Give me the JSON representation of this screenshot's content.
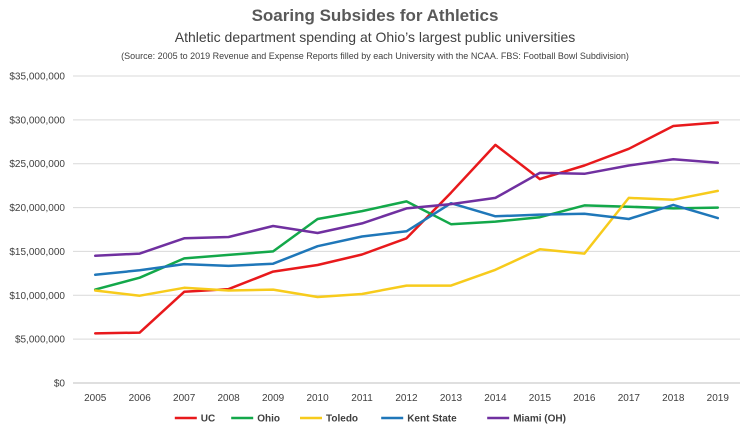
{
  "chart_data": {
    "type": "line",
    "title": "Soaring Subsides for Athletics",
    "subtitle": "Athletic department spending at Ohio’s largest public universities",
    "source": "(Source: 2005 to 2019 Revenue and Expense Reports filled by each University with the NCAA. FBS: Football Bowl Subdivision)",
    "x": [
      "2005",
      "2006",
      "2007",
      "2008",
      "2009",
      "2010",
      "2011",
      "2012",
      "2013",
      "2014",
      "2015",
      "2016",
      "2017",
      "2018",
      "2019"
    ],
    "ylim": [
      0,
      35000000
    ],
    "yticks": [
      0,
      5000000,
      10000000,
      15000000,
      20000000,
      25000000,
      30000000,
      35000000
    ],
    "ytick_labels": [
      "$0",
      "$5,000,000",
      "$10,000,000",
      "$15,000,000",
      "$20,000,000",
      "$25,000,000",
      "$30,000,000",
      "$35,000,000"
    ],
    "grid": true,
    "legend_position": "bottom",
    "series": [
      {
        "name": "UC",
        "color": "#e8191c",
        "values": [
          5650000,
          5750000,
          10400000,
          10700000,
          12700000,
          13450000,
          14650000,
          16500000,
          21700000,
          27150000,
          23250000,
          24800000,
          26700000,
          29300000,
          29700000
        ]
      },
      {
        "name": "Ohio",
        "color": "#13a84a",
        "values": [
          10650000,
          12000000,
          14200000,
          14600000,
          15000000,
          18700000,
          19600000,
          20700000,
          18100000,
          18400000,
          18900000,
          20250000,
          20100000,
          19900000,
          20000000
        ]
      },
      {
        "name": "Toledo",
        "color": "#f7cb1c",
        "values": [
          10550000,
          9950000,
          10850000,
          10550000,
          10650000,
          9800000,
          10150000,
          11100000,
          11100000,
          12900000,
          15250000,
          14750000,
          21100000,
          20900000,
          21900000
        ]
      },
      {
        "name": "Kent State",
        "color": "#1f77b9",
        "values": [
          12350000,
          12850000,
          13550000,
          13350000,
          13600000,
          15600000,
          16700000,
          17300000,
          20500000,
          19000000,
          19200000,
          19300000,
          18700000,
          20300000,
          18800000
        ]
      },
      {
        "name": "Miami (OH)",
        "color": "#7030a0",
        "values": [
          14500000,
          14750000,
          16500000,
          16650000,
          17900000,
          17100000,
          18200000,
          19900000,
          20400000,
          21100000,
          23950000,
          23850000,
          24800000,
          25500000,
          25100000
        ]
      }
    ]
  }
}
